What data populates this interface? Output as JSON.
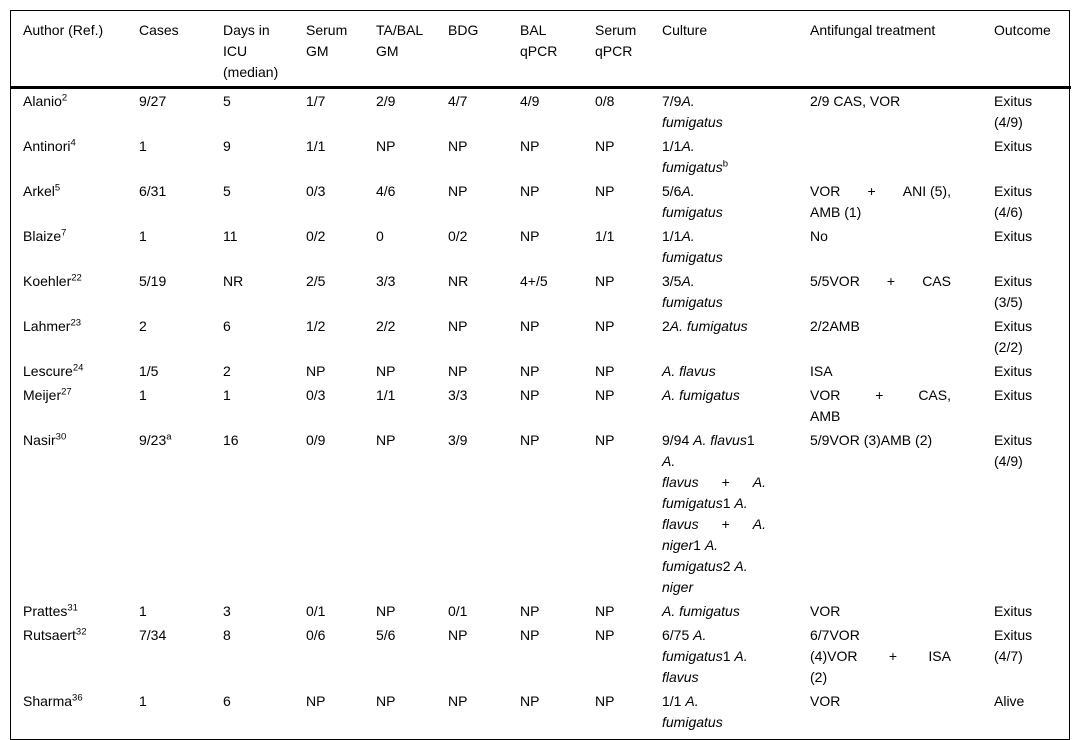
{
  "colors": {
    "text": "#000000",
    "background": "#ffffff",
    "border": "#000000"
  },
  "table": {
    "header": [
      {
        "id": "author",
        "lines": [
          "Author (Ref.)"
        ]
      },
      {
        "id": "cases",
        "lines": [
          "Cases"
        ]
      },
      {
        "id": "days-icu",
        "lines": [
          "Days in",
          "ICU",
          "(median)"
        ]
      },
      {
        "id": "serum-gm",
        "lines": [
          "Serum",
          "GM"
        ]
      },
      {
        "id": "tabal-gm",
        "lines": [
          "TA/BAL",
          "GM"
        ]
      },
      {
        "id": "bdg",
        "lines": [
          "BDG"
        ]
      },
      {
        "id": "bal-qpcr",
        "lines": [
          "BAL",
          "qPCR"
        ]
      },
      {
        "id": "serum-qpcr",
        "lines": [
          "Serum",
          "qPCR"
        ]
      },
      {
        "id": "culture",
        "lines": [
          "Culture"
        ]
      },
      {
        "id": "antifungal",
        "lines": [
          "Antifungal treatment"
        ]
      },
      {
        "id": "outcome",
        "lines": [
          "Outcome"
        ]
      }
    ],
    "rows": [
      {
        "key": "alanio",
        "cells": [
          [
            {
              "s": [
                {
                  "t": "Alanio"
                },
                {
                  "t": "2",
                  "sup": true
                }
              ]
            }
          ],
          [
            "9/27"
          ],
          [
            "5"
          ],
          [
            "1/7"
          ],
          [
            "2/9"
          ],
          [
            "4/7"
          ],
          [
            "4/9"
          ],
          [
            "0/8"
          ],
          [
            {
              "s": [
                {
                  "t": "7/9"
                },
                {
                  "t": "A.",
                  "i": true
                }
              ]
            },
            {
              "s": [
                {
                  "t": "fumigatus",
                  "i": true
                }
              ]
            }
          ],
          [
            "2/9 CAS, VOR"
          ],
          [
            "Exitus",
            "(4/9)"
          ]
        ]
      },
      {
        "key": "antinori",
        "cells": [
          [
            {
              "s": [
                {
                  "t": "Antinori"
                },
                {
                  "t": "4",
                  "sup": true
                }
              ]
            }
          ],
          [
            "1"
          ],
          [
            "9"
          ],
          [
            "1/1"
          ],
          [
            "NP"
          ],
          [
            "NP"
          ],
          [
            "NP"
          ],
          [
            "NP"
          ],
          [
            {
              "s": [
                {
                  "t": "1/1"
                },
                {
                  "t": "A.",
                  "i": true
                }
              ]
            },
            {
              "s": [
                {
                  "t": "fumigatus",
                  "i": true
                },
                {
                  "t": "b",
                  "sup": true
                }
              ]
            }
          ],
          [],
          [
            "Exitus"
          ]
        ]
      },
      {
        "key": "arkel",
        "cells": [
          [
            {
              "s": [
                {
                  "t": "Arkel"
                },
                {
                  "t": "5",
                  "sup": true
                }
              ]
            }
          ],
          [
            "6/31"
          ],
          [
            "5"
          ],
          [
            "0/3"
          ],
          [
            "4/6"
          ],
          [
            "NP"
          ],
          [
            "NP"
          ],
          [
            "NP"
          ],
          [
            {
              "s": [
                {
                  "t": "5/6"
                },
                {
                  "t": "A.",
                  "i": true
                }
              ]
            },
            {
              "s": [
                {
                  "t": "fumigatus",
                  "i": true
                }
              ]
            }
          ],
          [
            {
              "j": true,
              "s": [
                {
                  "t": "VOR"
                },
                {
                  "t": "+"
                },
                {
                  "t": "ANI (5),"
                }
              ]
            },
            "AMB (1)"
          ],
          [
            "Exitus",
            "(4/6)"
          ]
        ]
      },
      {
        "key": "blaize",
        "cells": [
          [
            {
              "s": [
                {
                  "t": "Blaize"
                },
                {
                  "t": "7",
                  "sup": true
                }
              ]
            }
          ],
          [
            "1"
          ],
          [
            "11"
          ],
          [
            "0/2"
          ],
          [
            "0"
          ],
          [
            "0/2"
          ],
          [
            "NP"
          ],
          [
            "1/1"
          ],
          [
            {
              "s": [
                {
                  "t": "1/1"
                },
                {
                  "t": "A.",
                  "i": true
                }
              ]
            },
            {
              "s": [
                {
                  "t": "fumigatus",
                  "i": true
                }
              ]
            }
          ],
          [
            "No"
          ],
          [
            "Exitus"
          ]
        ]
      },
      {
        "key": "koehler",
        "cells": [
          [
            {
              "s": [
                {
                  "t": "Koehler"
                },
                {
                  "t": "22",
                  "sup": true
                }
              ]
            }
          ],
          [
            "5/19"
          ],
          [
            "NR"
          ],
          [
            "2/5"
          ],
          [
            "3/3"
          ],
          [
            "NR"
          ],
          [
            "4+/5"
          ],
          [
            "NP"
          ],
          [
            {
              "s": [
                {
                  "t": "3/5"
                },
                {
                  "t": "A.",
                  "i": true
                }
              ]
            },
            {
              "s": [
                {
                  "t": "fumigatus",
                  "i": true
                }
              ]
            }
          ],
          [
            {
              "j": true,
              "s": [
                {
                  "t": "5/5VOR"
                },
                {
                  "t": "+"
                },
                {
                  "t": "CAS"
                }
              ]
            }
          ],
          [
            "Exitus",
            "(3/5)"
          ]
        ]
      },
      {
        "key": "lahmer",
        "cells": [
          [
            {
              "s": [
                {
                  "t": "Lahmer"
                },
                {
                  "t": "23",
                  "sup": true
                }
              ]
            }
          ],
          [
            "2"
          ],
          [
            "6"
          ],
          [
            "1/2"
          ],
          [
            "2/2"
          ],
          [
            "NP"
          ],
          [
            "NP"
          ],
          [
            "NP"
          ],
          [
            {
              "s": [
                {
                  "t": "2"
                },
                {
                  "t": "A. fumigatus",
                  "i": true
                }
              ]
            }
          ],
          [
            "2/2AMB"
          ],
          [
            "Exitus",
            "(2/2)"
          ]
        ]
      },
      {
        "key": "lescure",
        "cells": [
          [
            {
              "s": [
                {
                  "t": "Lescure"
                },
                {
                  "t": "24",
                  "sup": true
                }
              ]
            }
          ],
          [
            "1/5"
          ],
          [
            "2"
          ],
          [
            "NP"
          ],
          [
            "NP"
          ],
          [
            "NP"
          ],
          [
            "NP"
          ],
          [
            "NP"
          ],
          [
            {
              "s": [
                {
                  "t": "A. flavus",
                  "i": true
                }
              ]
            }
          ],
          [
            "ISA"
          ],
          [
            "Exitus"
          ]
        ]
      },
      {
        "key": "meijer",
        "cells": [
          [
            {
              "s": [
                {
                  "t": "Meijer"
                },
                {
                  "t": "27",
                  "sup": true
                }
              ]
            }
          ],
          [
            "1"
          ],
          [
            "1"
          ],
          [
            "0/3"
          ],
          [
            "1/1"
          ],
          [
            "3/3"
          ],
          [
            "NP"
          ],
          [
            "NP"
          ],
          [
            {
              "s": [
                {
                  "t": "A. fumigatus",
                  "i": true
                }
              ]
            }
          ],
          [
            {
              "j": true,
              "s": [
                {
                  "t": "VOR"
                },
                {
                  "t": "+"
                },
                {
                  "t": "CAS,"
                }
              ]
            },
            "AMB"
          ],
          [
            "Exitus"
          ]
        ]
      },
      {
        "key": "nasir",
        "cells": [
          [
            {
              "s": [
                {
                  "t": "Nasir"
                },
                {
                  "t": "30",
                  "sup": true
                }
              ]
            }
          ],
          [
            {
              "s": [
                {
                  "t": "9/23"
                },
                {
                  "t": "a",
                  "sup": true
                }
              ]
            }
          ],
          [
            "16"
          ],
          [
            "0/9"
          ],
          [
            "NP"
          ],
          [
            "3/9"
          ],
          [
            "NP"
          ],
          [
            "NP"
          ],
          [
            {
              "s": [
                {
                  "t": "9/94 "
                },
                {
                  "t": "A. flavus",
                  "i": true
                },
                {
                  "t": "1"
                }
              ]
            },
            {
              "s": [
                {
                  "t": "A.",
                  "i": true
                }
              ]
            },
            {
              "j": true,
              "s": [
                {
                  "t": "flavus",
                  "i": true
                },
                {
                  "t": "+"
                },
                {
                  "t": "A.",
                  "i": true
                }
              ]
            },
            {
              "s": [
                {
                  "t": "fumigatus",
                  "i": true
                },
                {
                  "t": "1 "
                },
                {
                  "t": "A.",
                  "i": true
                }
              ]
            },
            {
              "j": true,
              "s": [
                {
                  "t": "flavus",
                  "i": true
                },
                {
                  "t": "+"
                },
                {
                  "t": "A.",
                  "i": true
                }
              ]
            },
            {
              "s": [
                {
                  "t": "niger",
                  "i": true
                },
                {
                  "t": "1 "
                },
                {
                  "t": "A.",
                  "i": true
                }
              ]
            },
            {
              "s": [
                {
                  "t": "fumigatus",
                  "i": true
                },
                {
                  "t": "2 "
                },
                {
                  "t": "A.",
                  "i": true
                }
              ]
            },
            {
              "s": [
                {
                  "t": "niger",
                  "i": true
                }
              ]
            }
          ],
          [
            "5/9VOR (3)AMB (2)"
          ],
          [
            "Exitus",
            "(4/9)"
          ]
        ]
      },
      {
        "key": "prattes",
        "cells": [
          [
            {
              "s": [
                {
                  "t": "Prattes"
                },
                {
                  "t": "31",
                  "sup": true
                }
              ]
            }
          ],
          [
            "1"
          ],
          [
            "3"
          ],
          [
            "0/1"
          ],
          [
            "NP"
          ],
          [
            "0/1"
          ],
          [
            "NP"
          ],
          [
            "NP"
          ],
          [
            {
              "s": [
                {
                  "t": "A. fumigatus",
                  "i": true
                }
              ]
            }
          ],
          [
            "VOR"
          ],
          [
            "Exitus"
          ]
        ]
      },
      {
        "key": "rutsaert",
        "cells": [
          [
            {
              "s": [
                {
                  "t": "Rutsaert"
                },
                {
                  "t": "32",
                  "sup": true
                }
              ]
            }
          ],
          [
            "7/34"
          ],
          [
            "8"
          ],
          [
            "0/6"
          ],
          [
            "5/6"
          ],
          [
            "NP"
          ],
          [
            "NP"
          ],
          [
            "NP"
          ],
          [
            {
              "s": [
                {
                  "t": "6/75 "
                },
                {
                  "t": "A.",
                  "i": true
                }
              ]
            },
            {
              "s": [
                {
                  "t": "fumigatus",
                  "i": true
                },
                {
                  "t": "1 "
                },
                {
                  "t": "A.",
                  "i": true
                }
              ]
            },
            {
              "s": [
                {
                  "t": "flavus",
                  "i": true
                }
              ]
            }
          ],
          [
            "6/7VOR",
            {
              "j": true,
              "s": [
                {
                  "t": "(4)VOR"
                },
                {
                  "t": "+"
                },
                {
                  "t": "ISA"
                }
              ]
            },
            "(2)"
          ],
          [
            "Exitus",
            "(4/7)"
          ]
        ]
      },
      {
        "key": "sharma",
        "cells": [
          [
            {
              "s": [
                {
                  "t": "Sharma"
                },
                {
                  "t": "36",
                  "sup": true
                }
              ]
            }
          ],
          [
            "1"
          ],
          [
            "6"
          ],
          [
            "NP"
          ],
          [
            "NP"
          ],
          [
            "NP"
          ],
          [
            "NP"
          ],
          [
            "NP"
          ],
          [
            {
              "s": [
                {
                  "t": "1/1 "
                },
                {
                  "t": "A.",
                  "i": true
                }
              ]
            },
            {
              "s": [
                {
                  "t": "fumigatus",
                  "i": true
                }
              ]
            }
          ],
          [
            "VOR"
          ],
          [
            "Alive"
          ]
        ]
      }
    ]
  }
}
